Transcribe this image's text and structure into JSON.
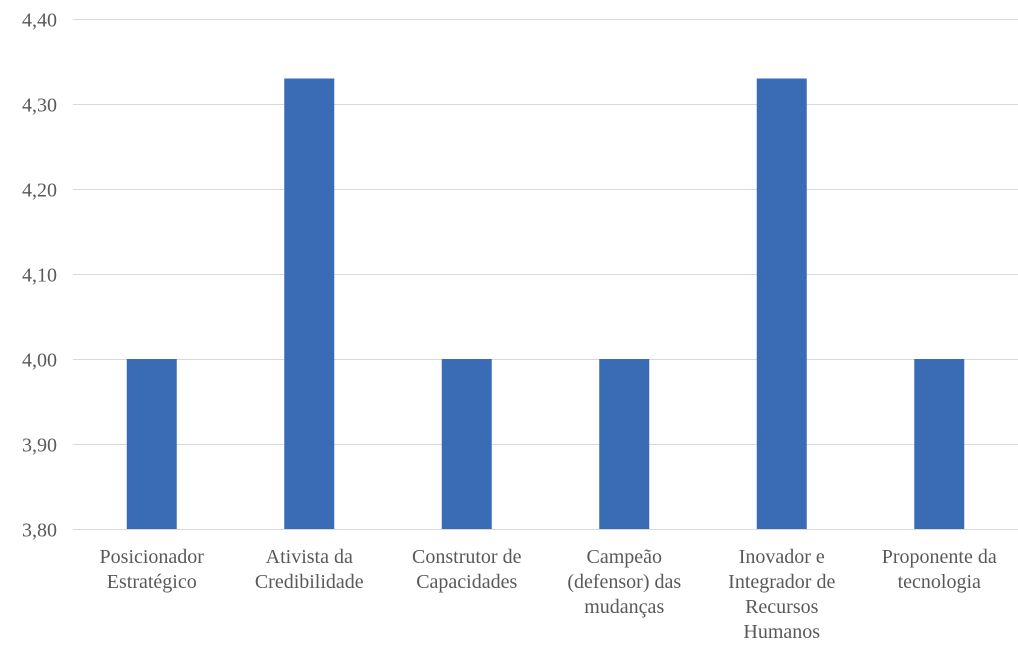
{
  "chart_data": {
    "type": "bar",
    "categories": [
      "Posicionador Estratégico",
      "Ativista da Credibilidade",
      "Construtor de Capacidades",
      "Campeão (defensor) das mudanças",
      "Inovador e Integrador de Recursos Humanos",
      "Proponente da tecnologia"
    ],
    "category_lines": [
      [
        "Posicionador",
        "Estratégico"
      ],
      [
        "Ativista da",
        "Credibilidade"
      ],
      [
        "Construtor de",
        "Capacidades"
      ],
      [
        "Campeão",
        "(defensor) das",
        "mudanças"
      ],
      [
        "Inovador e",
        "Integrador de",
        "Recursos",
        "Humanos"
      ],
      [
        "Proponente da",
        "tecnologia"
      ]
    ],
    "values": [
      4.0,
      4.33,
      4.0,
      4.0,
      4.33,
      4.0
    ],
    "ylim": [
      3.8,
      4.4
    ],
    "yticks": [
      3.8,
      3.9,
      4.0,
      4.1,
      4.2,
      4.3,
      4.4
    ],
    "ytick_labels": [
      "3,80",
      "3,90",
      "4,00",
      "4,10",
      "4,20",
      "4,30",
      "4,40"
    ],
    "bar_color": "#3a6bb5",
    "grid": true,
    "legend": "none",
    "title": "",
    "xlabel": "",
    "ylabel": ""
  }
}
